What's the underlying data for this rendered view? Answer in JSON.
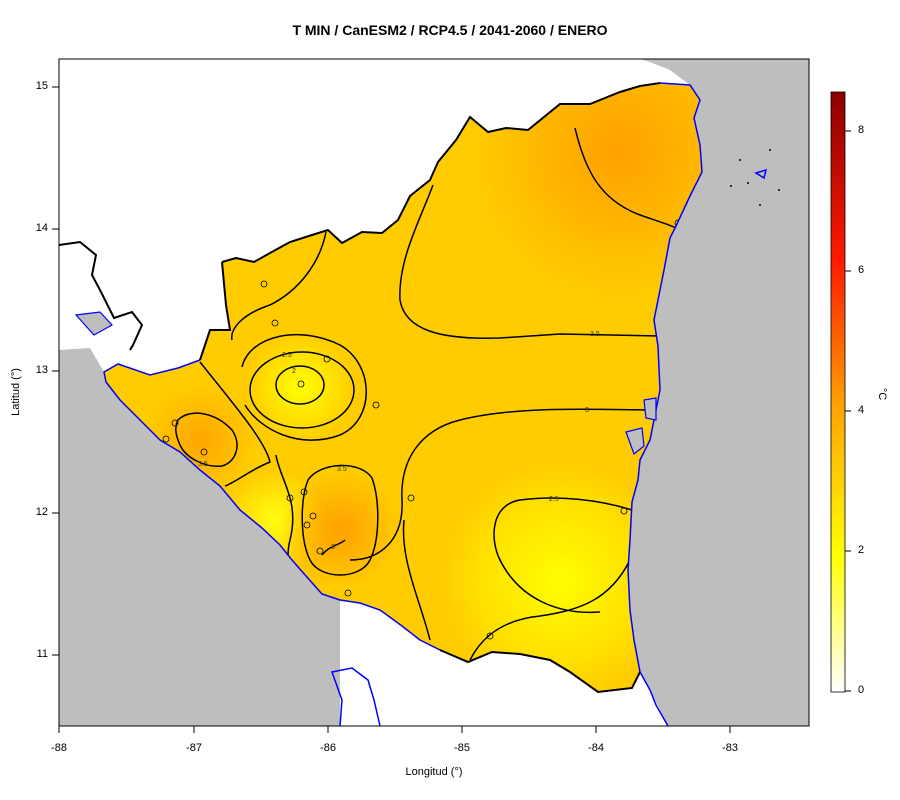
{
  "title": "T MIN / CanESM2 / RCP4.5 / 2041-2060 / ENERO",
  "axes": {
    "xlabel": "Longitud (°)",
    "ylabel": "Latitud (°)",
    "x_ticks": [
      "-88",
      "-87",
      "-86",
      "-85",
      "-84",
      "-83"
    ],
    "y_ticks": [
      "15",
      "14",
      "13",
      "12",
      "11"
    ]
  },
  "colorbar": {
    "unit": "°C",
    "ticks": [
      "8",
      "6",
      "4",
      "2",
      "0"
    ],
    "range": [
      0,
      8.6
    ],
    "colors": [
      "#ffffff",
      "#ffff00",
      "#ffa500",
      "#ff0000",
      "#8b0000"
    ]
  },
  "contour_labels": [
    "2.5",
    "2",
    "3.5",
    "3.5",
    "3",
    "2.5",
    "3",
    "3.5",
    "3"
  ],
  "colors": {
    "ocean": "#bebebe",
    "coastline": "#0000ff",
    "border": "#000000",
    "field_low": "#ffff00",
    "field_high": "#ffa500"
  },
  "stations_count": 23
}
